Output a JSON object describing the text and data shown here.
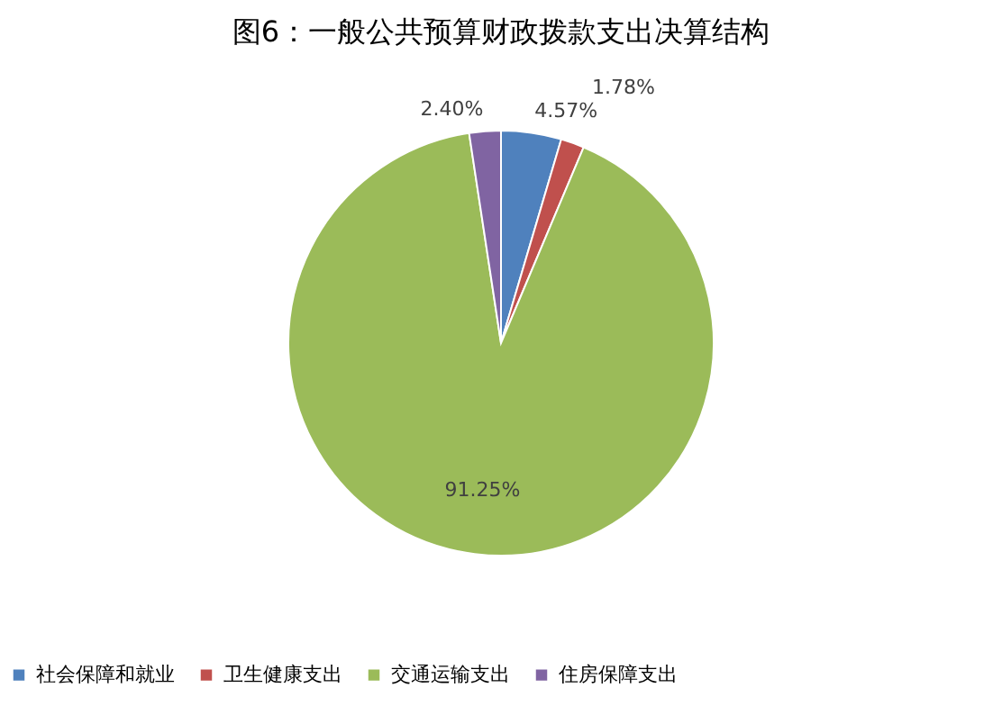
{
  "chart_data": {
    "type": "pie",
    "title": "图6：一般公共预算财政拨款支出决算结构",
    "categories": [
      "社会保障和就业",
      "卫生健康支出",
      "交通运输支出",
      "住房保障支出"
    ],
    "values": [
      4.57,
      1.78,
      91.25,
      2.4
    ],
    "colors": [
      "#4f81bd",
      "#c0504d",
      "#9bbb59",
      "#8064a2"
    ],
    "value_labels": [
      "4.57%",
      "1.78%",
      "91.25%",
      "2.40%"
    ],
    "legend": "bottom"
  }
}
